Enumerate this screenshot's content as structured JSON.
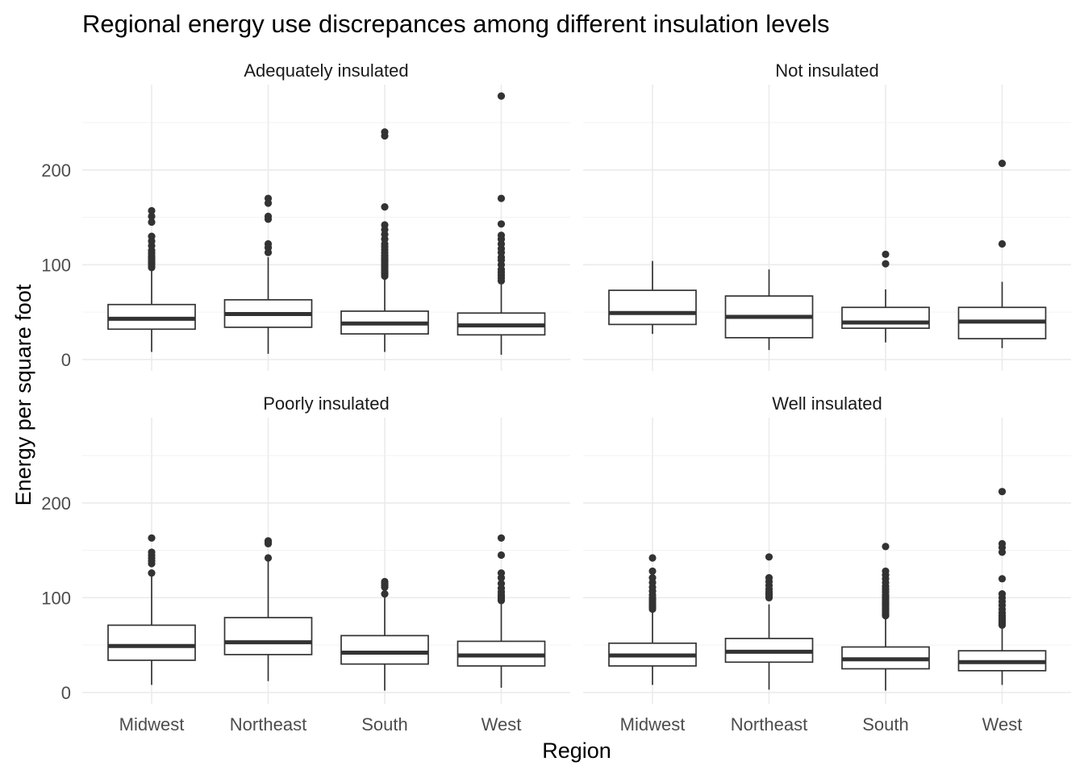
{
  "chart_data": {
    "type": "boxplot",
    "title": "Regional energy use discrepances among different insulation levels",
    "xlabel": "Region",
    "ylabel": "Energy per square foot",
    "categories": [
      "Midwest",
      "Northeast",
      "South",
      "West"
    ],
    "y_ticks": [
      0,
      100,
      200
    ],
    "ylim": [
      -12,
      290
    ],
    "grid": true,
    "legend": "none",
    "panels": [
      {
        "label": "Adequately insulated",
        "boxes": [
          {
            "category": "Midwest",
            "min": 8,
            "q1": 32,
            "median": 43,
            "q3": 58,
            "max": 96,
            "outliers": [
              97,
              99,
              101,
              103,
              105,
              107,
              109,
              112,
              115,
              120,
              125,
              130,
              145,
              151,
              157
            ]
          },
          {
            "category": "Northeast",
            "min": 6,
            "q1": 34,
            "median": 48,
            "q3": 63,
            "max": 108,
            "outliers": [
              113,
              118,
              122,
              148,
              151,
              165,
              170
            ]
          },
          {
            "category": "South",
            "min": 8,
            "q1": 27,
            "median": 38,
            "q3": 51,
            "max": 87,
            "outliers": [
              88,
              90,
              92,
              94,
              96,
              98,
              100,
              102,
              104,
              106,
              108,
              110,
              113,
              116,
              119,
              122,
              127,
              132,
              137,
              142,
              161,
              236,
              240
            ]
          },
          {
            "category": "West",
            "min": 5,
            "q1": 26,
            "median": 36,
            "q3": 49,
            "max": 82,
            "outliers": [
              83,
              86,
              89,
              92,
              95,
              100,
              105,
              108,
              113,
              117,
              122,
              127,
              131,
              143,
              170,
              278
            ]
          }
        ]
      },
      {
        "label": "Not insulated",
        "boxes": [
          {
            "category": "Midwest",
            "min": 27,
            "q1": 37,
            "median": 49,
            "q3": 73,
            "max": 104,
            "outliers": []
          },
          {
            "category": "Northeast",
            "min": 10,
            "q1": 23,
            "median": 45,
            "q3": 67,
            "max": 95,
            "outliers": []
          },
          {
            "category": "South",
            "min": 18,
            "q1": 33,
            "median": 39,
            "q3": 55,
            "max": 74,
            "outliers": [
              101,
              111
            ]
          },
          {
            "category": "West",
            "min": 12,
            "q1": 22,
            "median": 40,
            "q3": 55,
            "max": 82,
            "outliers": [
              122,
              207
            ]
          }
        ]
      },
      {
        "label": "Poorly insulated",
        "boxes": [
          {
            "category": "Midwest",
            "min": 8,
            "q1": 34,
            "median": 49,
            "q3": 71,
            "max": 125,
            "outliers": [
              126,
              136,
              139,
              142,
              145,
              148,
              163
            ]
          },
          {
            "category": "Northeast",
            "min": 12,
            "q1": 40,
            "median": 53,
            "q3": 79,
            "max": 141,
            "outliers": [
              142,
              157,
              159,
              160
            ]
          },
          {
            "category": "South",
            "min": 2,
            "q1": 30,
            "median": 42,
            "q3": 60,
            "max": 103,
            "outliers": [
              104,
              111,
              113,
              115,
              117
            ]
          },
          {
            "category": "West",
            "min": 5,
            "q1": 28,
            "median": 39,
            "q3": 54,
            "max": 96,
            "outliers": [
              97,
              99,
              101,
              103,
              106,
              110,
              115,
              121,
              126,
              145,
              163
            ]
          }
        ]
      },
      {
        "label": "Well insulated",
        "boxes": [
          {
            "category": "Midwest",
            "min": 8,
            "q1": 28,
            "median": 39,
            "q3": 52,
            "max": 87,
            "outliers": [
              88,
              90,
              92,
              94,
              96,
              98,
              100,
              103,
              107,
              111,
              116,
              121,
              128,
              142
            ]
          },
          {
            "category": "Northeast",
            "min": 3,
            "q1": 32,
            "median": 43,
            "q3": 57,
            "max": 93,
            "outliers": [
              100,
              102,
              104,
              106,
              109,
              113,
              117,
              121,
              143
            ]
          },
          {
            "category": "South",
            "min": 2,
            "q1": 25,
            "median": 35,
            "q3": 48,
            "max": 80,
            "outliers": [
              81,
              83,
              85,
              87,
              89,
              91,
              93,
              95,
              97,
              99,
              101,
              103,
              106,
              109,
              112,
              116,
              120,
              124,
              128,
              154
            ]
          },
          {
            "category": "West",
            "min": 8,
            "q1": 23,
            "median": 32,
            "q3": 44,
            "max": 70,
            "outliers": [
              71,
              73,
              75,
              77,
              79,
              81,
              84,
              88,
              92,
              96,
              100,
              104,
              120,
              148,
              153,
              157,
              212
            ]
          }
        ]
      }
    ]
  }
}
